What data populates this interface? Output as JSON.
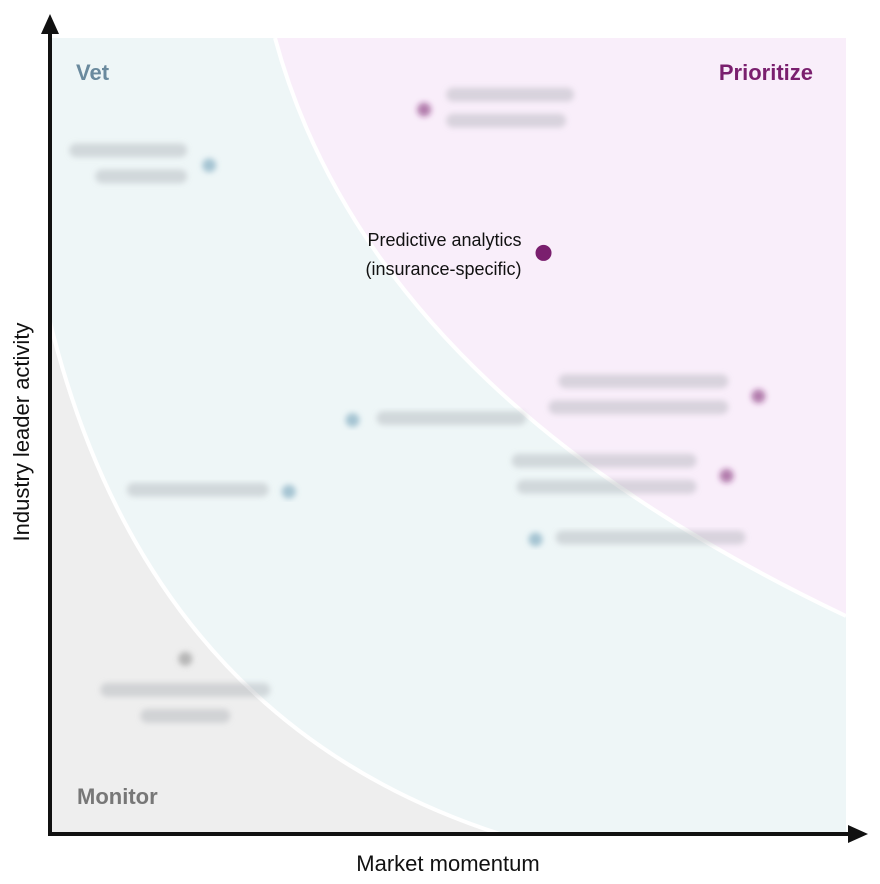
{
  "chart_data": {
    "type": "scatter",
    "title": "",
    "xlabel": "Market momentum",
    "ylabel": "Industry leader activity",
    "xlim": [
      0,
      100
    ],
    "ylim": [
      0,
      100
    ],
    "zones": [
      {
        "name": "Prioritize",
        "color": "#f9eefa",
        "label_color": "#7a1f6e"
      },
      {
        "name": "Vet",
        "color": "#eef6f7",
        "label_color": "#6a8a9e"
      },
      {
        "name": "Monitor",
        "color": "#eeeeee",
        "label_color": "#777777"
      }
    ],
    "points": [
      {
        "label": "Predictive analytics\n(insurance-specific)",
        "x": 62,
        "y": 73,
        "zone": "Prioritize",
        "color": "#7a1f6e",
        "blurred": false
      },
      {
        "label": "",
        "x": 47,
        "y": 91,
        "zone": "Prioritize",
        "color": "#7a1f6e",
        "blurred": true
      },
      {
        "label": "",
        "x": 89,
        "y": 55,
        "zone": "Prioritize",
        "color": "#7a1f6e",
        "blurred": true
      },
      {
        "label": "",
        "x": 85,
        "y": 45,
        "zone": "Prioritize",
        "color": "#7a1f6e",
        "blurred": true
      },
      {
        "label": "",
        "x": 20,
        "y": 84,
        "zone": "Vet",
        "color": "#6a9ab5",
        "blurred": true
      },
      {
        "label": "",
        "x": 38,
        "y": 52,
        "zone": "Vet",
        "color": "#6a9ab5",
        "blurred": true
      },
      {
        "label": "",
        "x": 30,
        "y": 43,
        "zone": "Vet",
        "color": "#6a9ab5",
        "blurred": true
      },
      {
        "label": "",
        "x": 61,
        "y": 37,
        "zone": "Vet",
        "color": "#6a9ab5",
        "blurred": true
      },
      {
        "label": "",
        "x": 17,
        "y": 22,
        "zone": "Monitor",
        "color": "#888888",
        "blurred": true
      }
    ],
    "legend": "none",
    "grid": false
  },
  "colors": {
    "axis": "#111111",
    "boundary": "#ffffff"
  }
}
